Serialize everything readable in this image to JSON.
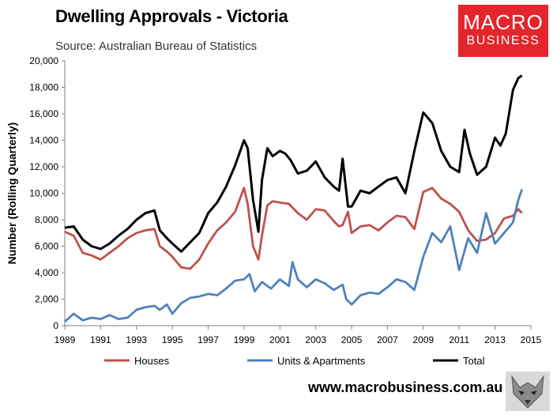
{
  "header": {
    "title": "Dwelling Approvals - Victoria",
    "subtitle": "Source: Australian Bureau of Statistics"
  },
  "logo": {
    "line1": "MACRO",
    "line2": "BUSINESS",
    "color": "#e3262b"
  },
  "footer": {
    "url": "www.macrobusiness.com.au",
    "icon": "wolf-logo-icon"
  },
  "chart_data": {
    "type": "line",
    "title": "Dwelling Approvals - Victoria",
    "xlabel": "",
    "ylabel": "Number (Rolling Quarterly)",
    "xlim": [
      1989,
      2015
    ],
    "ylim": [
      0,
      20000
    ],
    "x_ticks": [
      1989,
      1991,
      1993,
      1995,
      1997,
      1999,
      2001,
      2003,
      2005,
      2007,
      2009,
      2011,
      2013,
      2015
    ],
    "y_ticks": [
      0,
      2000,
      4000,
      6000,
      8000,
      10000,
      12000,
      14000,
      16000,
      18000,
      20000
    ],
    "y_tick_labels": [
      "0",
      "2,000",
      "4,000",
      "6,000",
      "8,000",
      "10,000",
      "12,000",
      "14,000",
      "16,000",
      "18,000",
      "20,000"
    ],
    "grid": false,
    "legend_position": "bottom",
    "series": [
      {
        "name": "Houses",
        "color": "#c0504d",
        "x": [
          1989,
          1989.5,
          1990,
          1990.5,
          1991,
          1991.5,
          1992,
          1992.5,
          1993,
          1993.5,
          1994,
          1994.3,
          1994.7,
          1995,
          1995.5,
          1996,
          1996.5,
          1997,
          1997.5,
          1998,
          1998.5,
          1999,
          1999.2,
          1999.5,
          1999.8,
          2000,
          2000.3,
          2000.6,
          2001,
          2001.5,
          2002,
          2002.5,
          2003,
          2003.5,
          2004,
          2004.3,
          2004.5,
          2004.8,
          2005,
          2005.5,
          2006,
          2006.5,
          2007,
          2007.5,
          2008,
          2008.5,
          2009,
          2009.5,
          2010,
          2010.5,
          2011,
          2011.5,
          2012,
          2012.5,
          2013,
          2013.5,
          2014,
          2014.3,
          2014.5
        ],
        "y": [
          7100,
          6800,
          5500,
          5300,
          5000,
          5500,
          6000,
          6600,
          7000,
          7200,
          7300,
          6000,
          5600,
          5200,
          4400,
          4300,
          5000,
          6200,
          7200,
          7800,
          8600,
          10400,
          9200,
          6000,
          5000,
          6800,
          9100,
          9400,
          9300,
          9200,
          8500,
          8000,
          8800,
          8700,
          7900,
          7500,
          7600,
          8600,
          7000,
          7500,
          7600,
          7200,
          7800,
          8300,
          8200,
          7300,
          10100,
          10400,
          9600,
          9200,
          8600,
          7200,
          6400,
          6500,
          7000,
          8100,
          8300,
          8800,
          8500
        ]
      },
      {
        "name": "Units & Apartments",
        "color": "#4f81bd",
        "x": [
          1989,
          1989.5,
          1990,
          1990.5,
          1991,
          1991.5,
          1992,
          1992.5,
          1993,
          1993.5,
          1994,
          1994.3,
          1994.7,
          1995,
          1995.5,
          1996,
          1996.5,
          1997,
          1997.5,
          1998,
          1998.5,
          1999,
          1999.3,
          1999.6,
          2000,
          2000.5,
          2001,
          2001.5,
          2001.7,
          2002,
          2002.5,
          2003,
          2003.5,
          2004,
          2004.5,
          2004.7,
          2005,
          2005.5,
          2006,
          2006.5,
          2007,
          2007.5,
          2008,
          2008.5,
          2009,
          2009.5,
          2010,
          2010.5,
          2011,
          2011.5,
          2012,
          2012.5,
          2013,
          2013.5,
          2014,
          2014.3,
          2014.5
        ],
        "y": [
          300,
          900,
          400,
          600,
          500,
          800,
          500,
          600,
          1200,
          1400,
          1500,
          1200,
          1600,
          900,
          1700,
          2100,
          2200,
          2400,
          2300,
          2800,
          3400,
          3500,
          3900,
          2600,
          3300,
          2800,
          3500,
          3000,
          4800,
          3500,
          2900,
          3500,
          3200,
          2700,
          3100,
          2000,
          1600,
          2300,
          2500,
          2400,
          2900,
          3500,
          3300,
          2700,
          5200,
          7000,
          6300,
          7500,
          4200,
          6600,
          5500,
          8500,
          6200,
          7000,
          7800,
          9500,
          10300
        ]
      },
      {
        "name": "Total",
        "color": "#000000",
        "x": [
          1989,
          1989.5,
          1990,
          1990.5,
          1991,
          1991.5,
          1992,
          1992.5,
          1993,
          1993.5,
          1994,
          1994.3,
          1994.7,
          1995,
          1995.5,
          1996,
          1996.5,
          1997,
          1997.5,
          1998,
          1998.5,
          1999,
          1999.2,
          1999.5,
          1999.8,
          2000,
          2000.3,
          2000.6,
          2001,
          2001.3,
          2001.6,
          2002,
          2002.5,
          2003,
          2003.5,
          2004,
          2004.3,
          2004.5,
          2004.8,
          2005,
          2005.5,
          2006,
          2006.5,
          2007,
          2007.5,
          2008,
          2008.5,
          2009,
          2009.5,
          2010,
          2010.5,
          2011,
          2011.3,
          2011.6,
          2012,
          2012.5,
          2013,
          2013.3,
          2013.6,
          2014,
          2014.3,
          2014.5
        ],
        "y": [
          7400,
          7500,
          6500,
          6000,
          5800,
          6200,
          6800,
          7300,
          8000,
          8500,
          8700,
          7200,
          6600,
          6200,
          5600,
          6300,
          7000,
          8500,
          9300,
          10500,
          12100,
          14000,
          13400,
          9500,
          7100,
          11000,
          13400,
          12800,
          13200,
          13000,
          12500,
          11500,
          11700,
          12400,
          11200,
          10500,
          10200,
          12600,
          9000,
          9000,
          10200,
          10000,
          10500,
          11000,
          11200,
          10000,
          13200,
          16100,
          15300,
          13200,
          12000,
          11600,
          14800,
          13000,
          11400,
          12000,
          14200,
          13600,
          14500,
          17800,
          18700,
          18900
        ]
      }
    ]
  }
}
